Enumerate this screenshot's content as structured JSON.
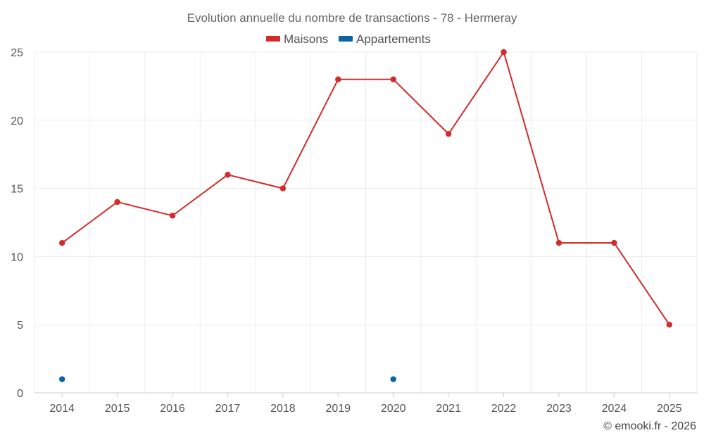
{
  "chart_data": {
    "type": "line",
    "title": "Evolution annuelle du nombre de transactions - 78 - Hermeray",
    "categories": [
      "2014",
      "2015",
      "2016",
      "2017",
      "2018",
      "2019",
      "2020",
      "2021",
      "2022",
      "2023",
      "2024",
      "2025"
    ],
    "series": [
      {
        "name": "Maisons",
        "color": "#d32a2a",
        "values": [
          11,
          14,
          13,
          16,
          15,
          23,
          23,
          19,
          25,
          11,
          11,
          5
        ]
      },
      {
        "name": "Appartements",
        "color": "#0b63a3",
        "values": [
          1,
          null,
          null,
          null,
          null,
          null,
          1,
          null,
          null,
          null,
          null,
          null
        ]
      }
    ],
    "ylim": [
      0,
      25
    ],
    "yticks": [
      0,
      5,
      10,
      15,
      20,
      25
    ],
    "xlabel": "",
    "ylabel": "",
    "legend": "top-center",
    "grid": true
  },
  "credit": "© emooki.fr - 2026"
}
